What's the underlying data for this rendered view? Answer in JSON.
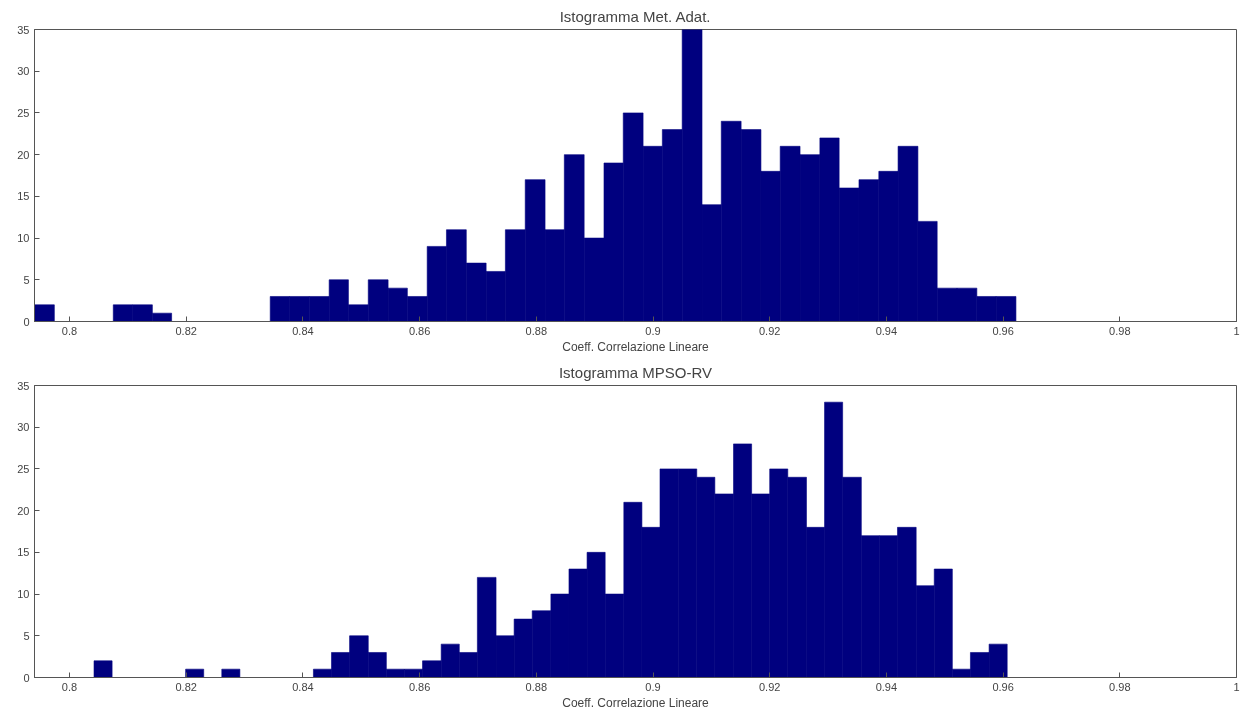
{
  "chart_data": [
    {
      "type": "histogram",
      "title": "Istogramma Met. Adat.",
      "xlabel": "Coeff. Correlazione Lineare",
      "color": "#00007f",
      "bins": [
        0.794,
        0.7974,
        0.8007,
        0.8041,
        0.8075,
        0.8108,
        0.8142,
        0.8175,
        0.8209,
        0.8243,
        0.8276,
        0.831,
        0.8344,
        0.8377,
        0.8411,
        0.8445,
        0.8478,
        0.8512,
        0.8546,
        0.8579,
        0.8613,
        0.8646,
        0.868,
        0.8714,
        0.8747,
        0.8781,
        0.8815,
        0.8848,
        0.8882,
        0.8916,
        0.8949,
        0.8983,
        0.9016,
        0.905,
        0.9084,
        0.9117,
        0.9151,
        0.9185,
        0.9218,
        0.9252,
        0.9286,
        0.9319,
        0.9353,
        0.9387,
        0.942,
        0.9454,
        0.9487,
        0.9521,
        0.9555,
        0.9588,
        0.9622
      ],
      "values": [
        2,
        0,
        0,
        0,
        2,
        2,
        1,
        0,
        0,
        0,
        0,
        0,
        3,
        3,
        3,
        5,
        2,
        5,
        4,
        3,
        9,
        11,
        7,
        6,
        11,
        17,
        11,
        20,
        10,
        19,
        25,
        21,
        23,
        35,
        14,
        24,
        23,
        18,
        21,
        20,
        22,
        16,
        17,
        18,
        21,
        12,
        4,
        4,
        3,
        3
      ],
      "xlim": [
        0.794,
        1.0
      ],
      "xticks": [
        0.8,
        0.82,
        0.84,
        0.86,
        0.88,
        0.9,
        0.92,
        0.94,
        0.96,
        0.98,
        1
      ],
      "ylim": [
        0,
        35
      ],
      "yticks": [
        0,
        5,
        10,
        15,
        20,
        25,
        30,
        35
      ]
    },
    {
      "type": "histogram",
      "title": "Istogramma MPSO-RV",
      "xlabel": "Coeff. Correlazione Lineare",
      "color": "#00007f",
      "bins": [
        0.8042,
        0.8073,
        0.8105,
        0.8136,
        0.8167,
        0.8199,
        0.823,
        0.8261,
        0.8292,
        0.8324,
        0.8355,
        0.8386,
        0.8418,
        0.8449,
        0.848,
        0.8512,
        0.8543,
        0.8574,
        0.8605,
        0.8637,
        0.8668,
        0.8699,
        0.8731,
        0.8762,
        0.8793,
        0.8825,
        0.8856,
        0.8887,
        0.8918,
        0.895,
        0.8981,
        0.9012,
        0.9044,
        0.9075,
        0.9106,
        0.9138,
        0.9169,
        0.92,
        0.9231,
        0.9263,
        0.9294,
        0.9325,
        0.9357,
        0.9388,
        0.9419,
        0.9451,
        0.9482,
        0.9513,
        0.9544,
        0.9576,
        0.9607
      ],
      "values": [
        2,
        0,
        0,
        0,
        0,
        1,
        0,
        1,
        0,
        0,
        0,
        0,
        1,
        3,
        5,
        3,
        1,
        1,
        2,
        4,
        3,
        12,
        5,
        7,
        8,
        10,
        13,
        15,
        10,
        21,
        18,
        25,
        25,
        24,
        22,
        28,
        22,
        25,
        24,
        18,
        33,
        24,
        17,
        17,
        18,
        11,
        13,
        1,
        3,
        4
      ],
      "xlim": [
        0.794,
        1.0
      ],
      "xticks": [
        0.8,
        0.82,
        0.84,
        0.86,
        0.88,
        0.9,
        0.92,
        0.94,
        0.96,
        0.98,
        1
      ],
      "ylim": [
        0,
        35
      ],
      "yticks": [
        0,
        5,
        10,
        15,
        20,
        25,
        30,
        35
      ]
    }
  ]
}
